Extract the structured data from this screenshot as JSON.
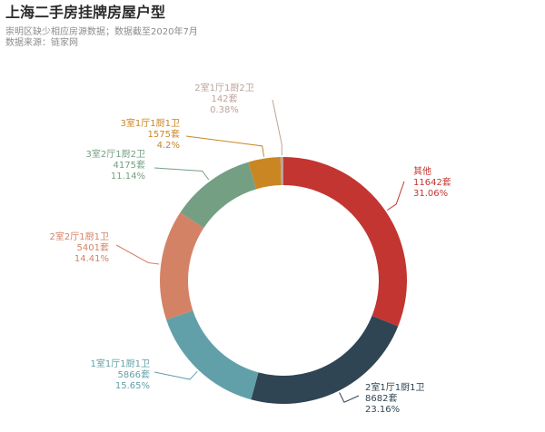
{
  "title": "上海二手房挂牌房屋户型",
  "subtitle": "崇明区缺少相应房源数据；数据截至2020年7月",
  "source": "数据来源：链家网",
  "chart_data": {
    "type": "pie",
    "variant": "donut",
    "slices": [
      {
        "name": "其他",
        "count": "11642套",
        "value": 11642,
        "percent": "31.06%",
        "color": "#c23531"
      },
      {
        "name": "2室1厅1厨1卫",
        "count": "8682套",
        "value": 8682,
        "percent": "23.16%",
        "color": "#2f4554"
      },
      {
        "name": "1室1厅1厨1卫",
        "count": "5866套",
        "value": 5866,
        "percent": "15.65%",
        "color": "#61a0a8"
      },
      {
        "name": "2室2厅1厨1卫",
        "count": "5401套",
        "value": 5401,
        "percent": "14.41%",
        "color": "#d48265"
      },
      {
        "name": "3室2厅1厨2卫",
        "count": "4175套",
        "value": 4175,
        "percent": "11.14%",
        "color": "#749f83"
      },
      {
        "name": "3室1厅1厨1卫",
        "count": "1575套",
        "value": 1575,
        "percent": "4.2%",
        "color": "#ca8622"
      },
      {
        "name": "2室1厅1厨2卫",
        "count": "142套",
        "value": 142,
        "percent": "0.38%",
        "color": "#bda29a"
      }
    ]
  }
}
